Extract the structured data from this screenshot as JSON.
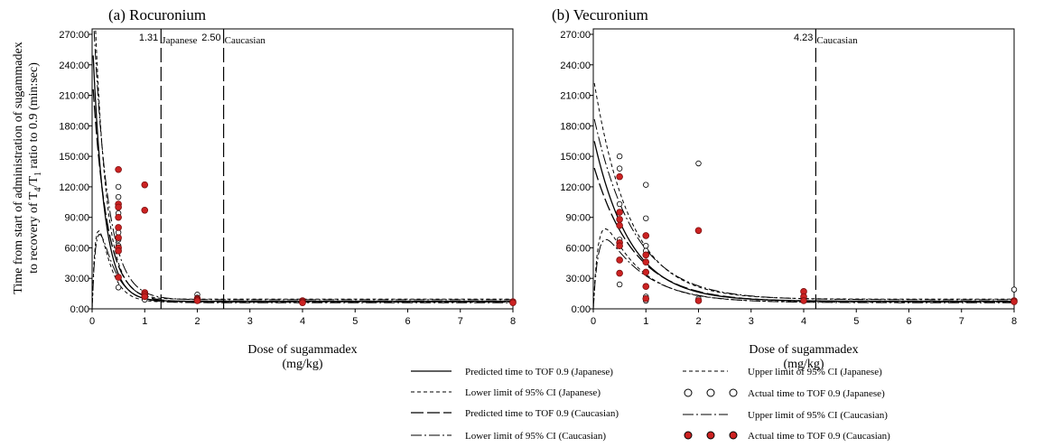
{
  "ylabel_line1": "Time from start of administration of sugammadex",
  "ylabel_line2_pre": "to recovery of T",
  "ylabel_line2_sub1": "4",
  "ylabel_line2_mid": "/T",
  "ylabel_line2_sub2": "1",
  "ylabel_line2_post": " ratio to 0.9 (min:sec)",
  "legend": [
    {
      "label": "Predicted time to TOF 0.9 (Japanese)",
      "style": "solid"
    },
    {
      "label": "Upper limit of 95% CI (Japanese)",
      "style": "short-dash"
    },
    {
      "label": "Lower limit of 95% CI (Japanese)",
      "style": "short-dash"
    },
    {
      "label": "Actual time to TOF 0.9 (Japanese)",
      "style": "open-circle"
    },
    {
      "label": "Predicted time to TOF 0.9 (Caucasian)",
      "style": "long-dash"
    },
    {
      "label": "Upper limit of 95% CI (Caucasian)",
      "style": "dash-dot"
    },
    {
      "label": "Lower limit of 95% CI (Caucasian)",
      "style": "dash-dot"
    },
    {
      "label": "Actual time to TOF 0.9 (Caucasian)",
      "style": "filled-circle"
    }
  ],
  "colors": {
    "caucasian_points": "#cc2222",
    "lines": "#000000"
  },
  "chart_data": [
    {
      "type": "scatter",
      "title": "(a) Rocuronium",
      "xlabel": "Dose of sugammadex",
      "xunit": "(mg/kg)",
      "xlim": [
        0,
        8
      ],
      "ylim": [
        0,
        270
      ],
      "xticks": [
        0,
        1,
        2,
        3,
        4,
        5,
        6,
        7,
        8
      ],
      "yticks": [
        "0:00",
        "30:00",
        "60:00",
        "90:00",
        "120:00",
        "150:00",
        "180:00",
        "210:00",
        "240:00",
        "270:00"
      ],
      "yticks_min": [
        0,
        30,
        60,
        90,
        120,
        150,
        180,
        210,
        240,
        270
      ],
      "reference_lines": [
        {
          "x": 1.31,
          "value": "1.31",
          "label": "Japanese"
        },
        {
          "x": 2.5,
          "value": "2.50",
          "label": "Caucasian"
        }
      ],
      "model": {
        "japanese": {
          "a": 7.5,
          "b": 265,
          "k": 4.6
        },
        "caucasian": {
          "a": 7,
          "b": 225,
          "k": 3.7
        }
      },
      "series": [
        {
          "name": "Actual time to TOF 0.9 (Japanese)",
          "marker": "open",
          "x": [
            0.5,
            0.5,
            0.5,
            0.5,
            0.5,
            0.5,
            0.5,
            0.5,
            1,
            1,
            1,
            2,
            2,
            2,
            4,
            4,
            8
          ],
          "y": [
            120,
            110,
            101,
            94,
            75,
            68,
            62,
            21,
            15,
            11,
            9,
            14,
            11,
            9,
            8,
            7,
            7
          ]
        },
        {
          "name": "Actual time to TOF 0.9 (Caucasian)",
          "marker": "filled",
          "x": [
            0.5,
            0.5,
            0.5,
            0.5,
            0.5,
            0.5,
            0.5,
            0.5,
            0.5,
            1,
            1,
            1,
            1,
            1,
            2,
            2,
            2,
            4,
            4,
            4,
            8,
            8
          ],
          "y": [
            137,
            103,
            100,
            90,
            80,
            70,
            60,
            57,
            31,
            122,
            97,
            16,
            14,
            12,
            10,
            9,
            8,
            8,
            7,
            6,
            7,
            6
          ]
        }
      ]
    },
    {
      "type": "scatter",
      "title": "(b) Vecuronium",
      "xlabel": "Dose of sugammadex",
      "xunit": "(mg/kg)",
      "xlim": [
        0,
        8
      ],
      "ylim": [
        0,
        270
      ],
      "xticks": [
        0,
        1,
        2,
        3,
        4,
        5,
        6,
        7,
        8
      ],
      "yticks": [
        "0:00",
        "30:00",
        "60:00",
        "90:00",
        "120:00",
        "150:00",
        "180:00",
        "210:00",
        "240:00",
        "270:00"
      ],
      "yticks_min": [
        0,
        30,
        60,
        90,
        120,
        150,
        180,
        210,
        240,
        270
      ],
      "reference_lines": [
        {
          "x": 4.23,
          "value": "4.23",
          "label": "Caucasian"
        }
      ],
      "model": {
        "japanese": {
          "a": 7.5,
          "b": 162,
          "k": 1.45
        },
        "caucasian": {
          "a": 7,
          "b": 135,
          "k": 1.3
        }
      },
      "series": [
        {
          "name": "Actual time to TOF 0.9 (Japanese)",
          "marker": "open",
          "x": [
            0.5,
            0.5,
            0.5,
            0.5,
            0.5,
            1,
            1,
            1,
            1,
            1,
            1,
            2,
            2,
            4,
            4,
            8
          ],
          "y": [
            150,
            138,
            103,
            68,
            24,
            122,
            89,
            62,
            57,
            12,
            8,
            143,
            10,
            10,
            8,
            19
          ]
        },
        {
          "name": "Actual time to TOF 0.9 (Caucasian)",
          "marker": "filled",
          "x": [
            0.5,
            0.5,
            0.5,
            0.5,
            0.5,
            0.5,
            0.5,
            0.5,
            1,
            1,
            1,
            1,
            1,
            1,
            2,
            2,
            4,
            4,
            4,
            8,
            8
          ],
          "y": [
            130,
            95,
            88,
            82,
            65,
            62,
            48,
            35,
            72,
            53,
            46,
            36,
            22,
            10,
            77,
            8,
            17,
            12,
            8,
            8,
            7
          ]
        }
      ]
    }
  ]
}
